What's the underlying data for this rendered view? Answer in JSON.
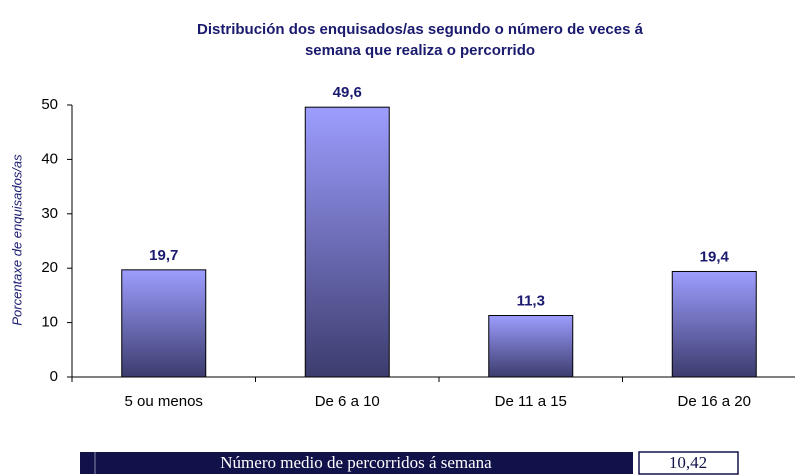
{
  "chart_data": {
    "type": "bar",
    "title": [
      "Distribución dos enquisados/as segundo o número de veces á",
      "semana que realiza o percorrido"
    ],
    "y_label": "Porcentaxe de enquisados/as",
    "categories": [
      "5 ou menos",
      "De 6 a 10",
      "De 11 a 15",
      "De 16 a 20"
    ],
    "values": [
      19.7,
      49.6,
      11.3,
      19.4
    ],
    "value_labels": [
      "19,7",
      "49,6",
      "11,3",
      "19,4"
    ],
    "color": [
      "#9d9dff",
      "#3c3c6e"
    ],
    "ylim": [
      0,
      50
    ],
    "yticks": [
      0,
      10,
      20,
      30,
      40,
      50
    ],
    "grid": false
  },
  "summary": {
    "label": "Número medio de percorridos á semana",
    "value": "10,42"
  }
}
